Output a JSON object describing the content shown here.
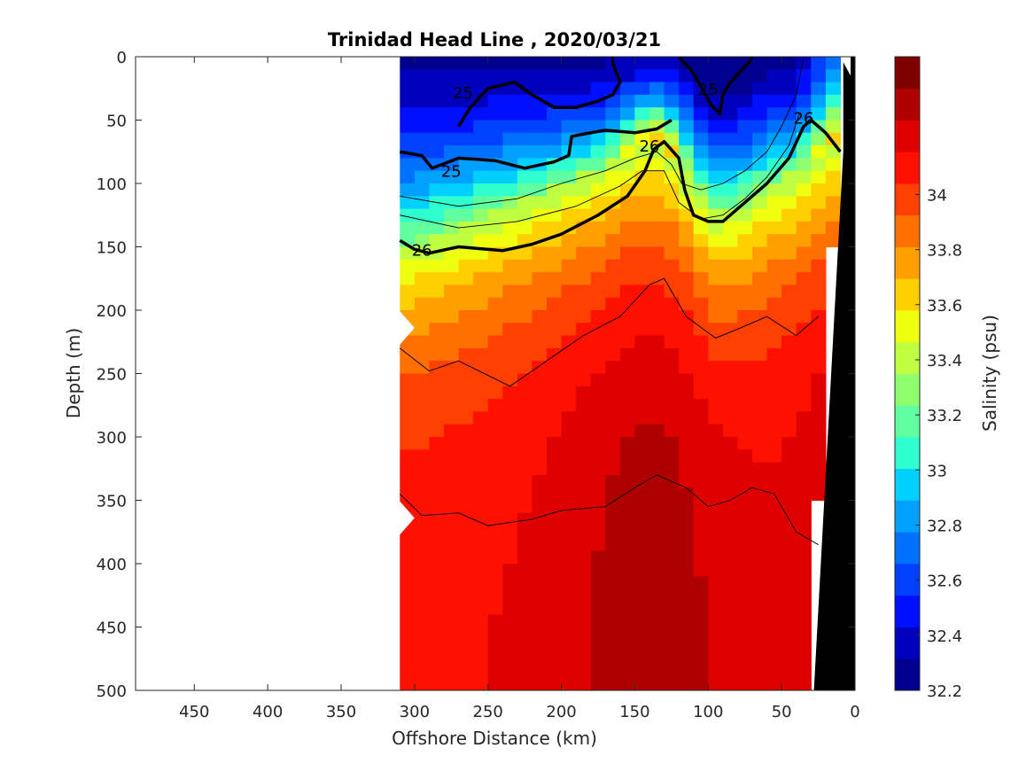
{
  "chart_data": {
    "type": "heatmap",
    "title": "Trinidad Head Line , 2020/03/21",
    "xlabel": "Offshore Distance (km)",
    "ylabel": "Depth (m)",
    "colorbar_label": "Salinity (psu)",
    "xlim": [
      490,
      0
    ],
    "ylim": [
      500,
      0
    ],
    "x_ticks": [
      450,
      400,
      350,
      300,
      250,
      200,
      150,
      100,
      50,
      0
    ],
    "y_ticks": [
      0,
      50,
      100,
      150,
      200,
      250,
      300,
      350,
      400,
      450,
      500
    ],
    "colorbar_range": [
      32.2,
      34.5
    ],
    "colorbar_ticks": [
      32.2,
      32.4,
      32.6,
      32.8,
      33,
      33.2,
      33.4,
      33.6,
      33.8,
      34
    ],
    "colorbar_colors": [
      "#00008f",
      "#0000bd",
      "#0010ff",
      "#0040ff",
      "#0070ff",
      "#00a0ff",
      "#00d0ff",
      "#30ffcf",
      "#60ff9f",
      "#90ff6f",
      "#c0ff3f",
      "#f0ff0f",
      "#ffd000",
      "#ffa000",
      "#ff7000",
      "#ff4000",
      "#ff1000",
      "#df0000",
      "#af0000",
      "#800000"
    ],
    "data_start_distance_km": 310,
    "density_contours": [
      {
        "label": "25",
        "points": [
          [
            310,
            75
          ],
          [
            295,
            78
          ],
          [
            288,
            88
          ],
          [
            270,
            80
          ],
          [
            245,
            82
          ],
          [
            225,
            88
          ],
          [
            205,
            83
          ],
          [
            195,
            78
          ],
          [
            193,
            63
          ],
          [
            185,
            61
          ],
          [
            170,
            58
          ],
          [
            150,
            60
          ],
          [
            135,
            57
          ],
          [
            125,
            50
          ]
        ]
      },
      {
        "label": "25",
        "points": [
          [
            270,
            55
          ],
          [
            262,
            40
          ],
          [
            250,
            25
          ],
          [
            232,
            20
          ],
          [
            220,
            30
          ],
          [
            205,
            40
          ],
          [
            190,
            40
          ],
          [
            175,
            35
          ],
          [
            165,
            30
          ],
          [
            160,
            20
          ],
          [
            165,
            5
          ],
          [
            165,
            0
          ]
        ]
      },
      {
        "label": "25",
        "points": [
          [
            120,
            0
          ],
          [
            112,
            10
          ],
          [
            104,
            25
          ],
          [
            98,
            38
          ],
          [
            92,
            45
          ],
          [
            90,
            30
          ],
          [
            86,
            22
          ],
          [
            80,
            14
          ],
          [
            72,
            4
          ],
          [
            70,
            0
          ]
        ]
      },
      {
        "label": "26",
        "points": [
          [
            310,
            145
          ],
          [
            300,
            152
          ],
          [
            290,
            155
          ],
          [
            270,
            150
          ],
          [
            250,
            152
          ],
          [
            240,
            153
          ],
          [
            220,
            148
          ],
          [
            200,
            140
          ],
          [
            175,
            125
          ],
          [
            155,
            110
          ],
          [
            143,
            90
          ],
          [
            137,
            73
          ],
          [
            130,
            67
          ],
          [
            120,
            80
          ],
          [
            116,
            105
          ],
          [
            110,
            125
          ],
          [
            100,
            130
          ],
          [
            90,
            130
          ],
          [
            75,
            115
          ],
          [
            60,
            100
          ],
          [
            45,
            80
          ],
          [
            35,
            55
          ],
          [
            30,
            50
          ],
          [
            20,
            60
          ],
          [
            10,
            75
          ]
        ]
      }
    ],
    "contour_labels": [
      {
        "text": "25",
        "x": 267,
        "y": 28
      },
      {
        "text": "25",
        "x": 275,
        "y": 90
      },
      {
        "text": "25",
        "x": 100,
        "y": 25
      },
      {
        "text": "26",
        "x": 295,
        "y": 152
      },
      {
        "text": "26",
        "x": 140,
        "y": 70
      },
      {
        "text": "26",
        "x": 35,
        "y": 48
      }
    ]
  }
}
